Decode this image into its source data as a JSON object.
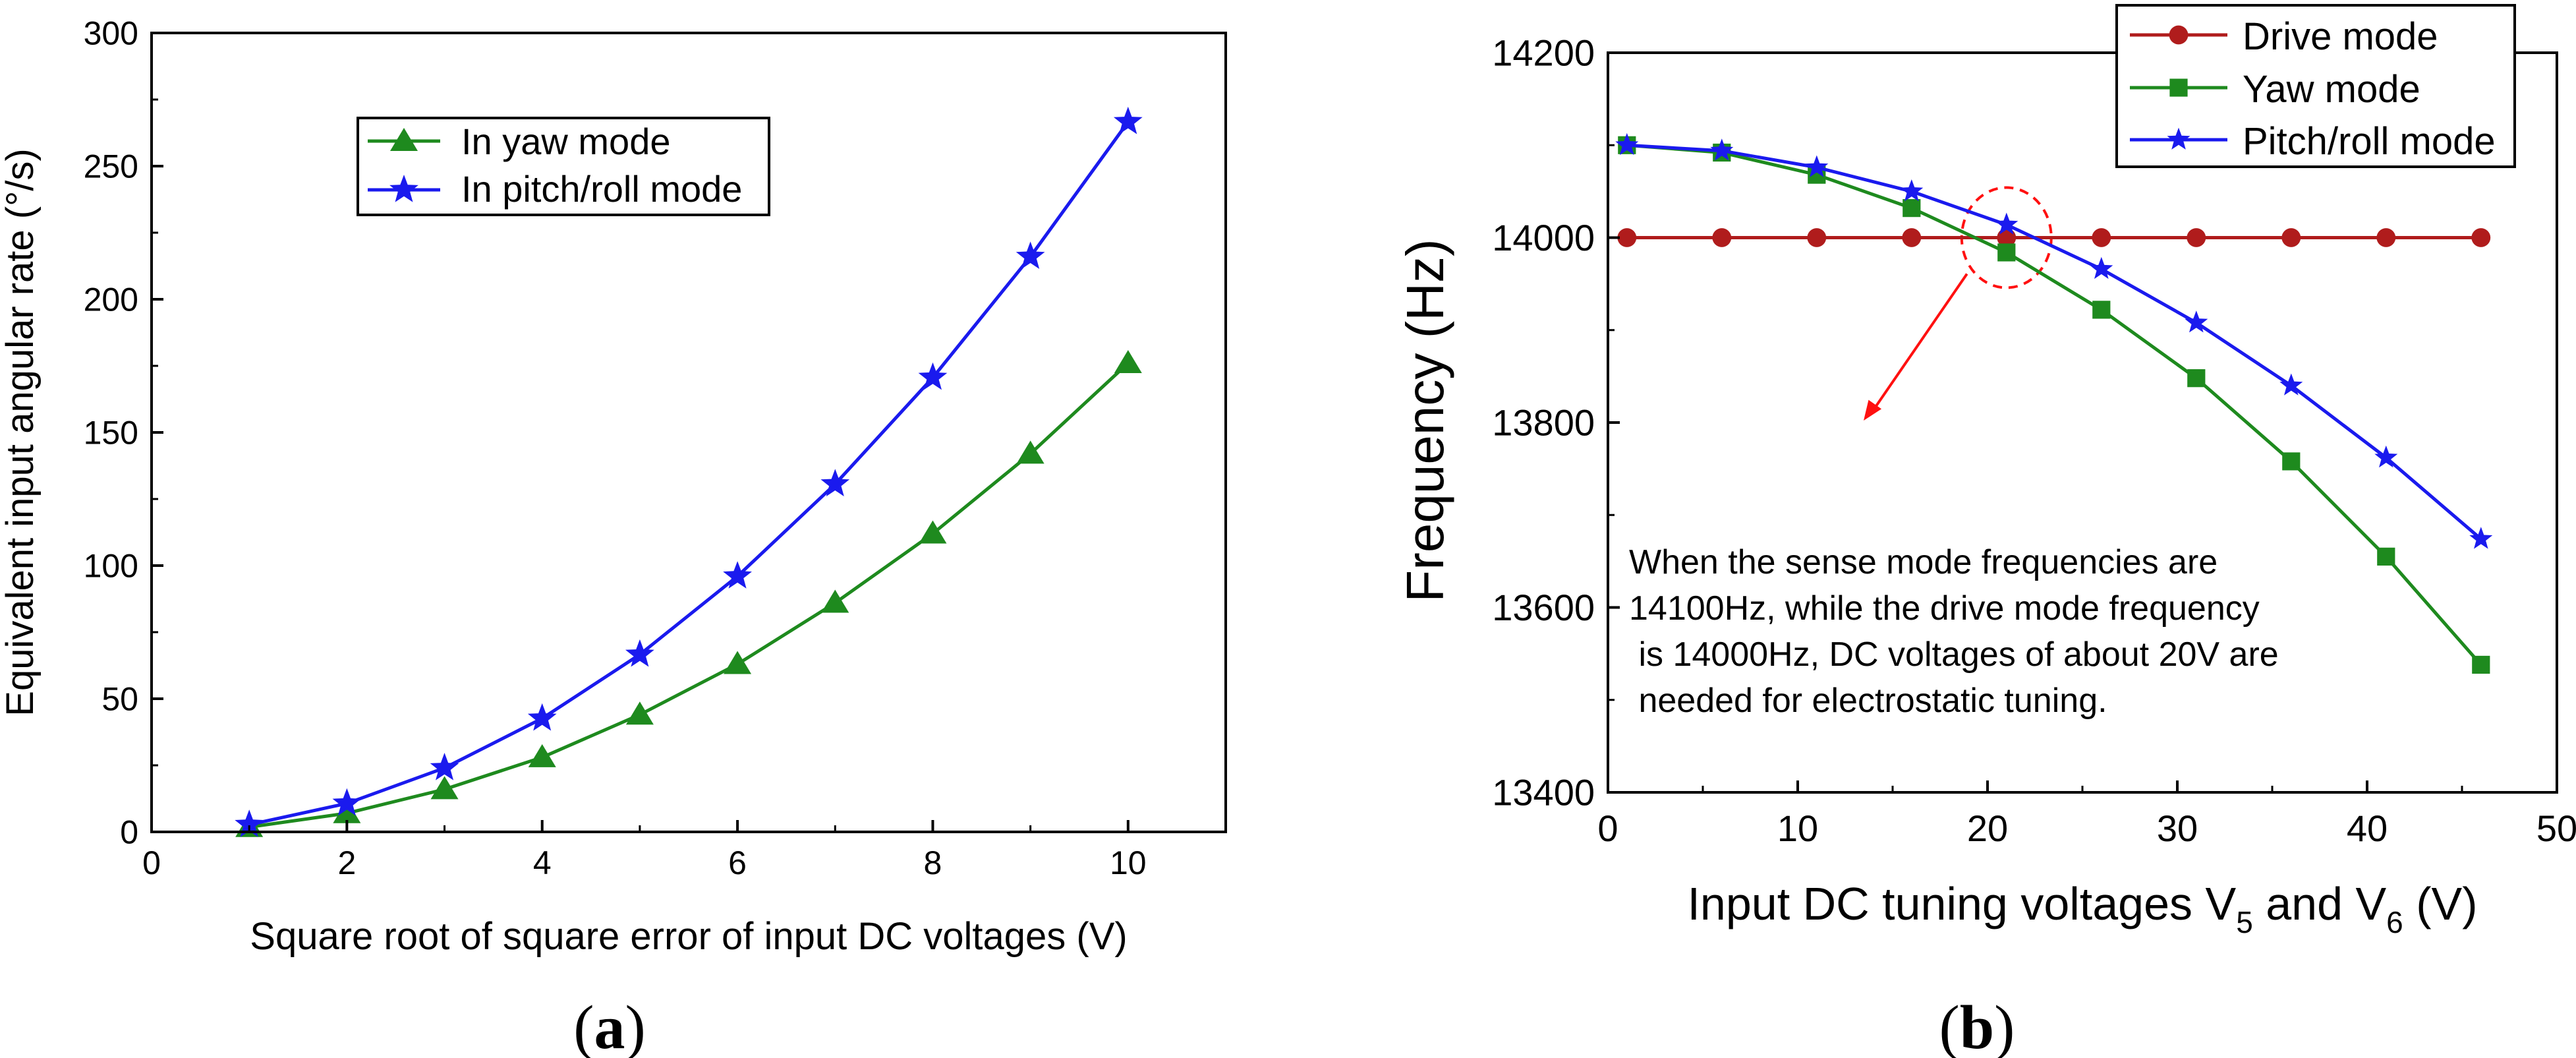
{
  "colors": {
    "green": "#1e8a1e",
    "blue": "#1a1aee",
    "red": "#b01c1c",
    "annot_red": "#ff1010"
  },
  "panel_a": {
    "label_open": "(",
    "label_letter": "a",
    "label_close": ")",
    "chart_data": {
      "type": "line",
      "title": "",
      "xlabel": "Square root of square error of input DC voltages (V)",
      "ylabel": "Equivalent input angular rate (°/s)",
      "xlim": [
        0,
        11
      ],
      "ylim": [
        0,
        300
      ],
      "xticks": [
        0,
        2,
        4,
        6,
        8,
        10
      ],
      "yticks": [
        0,
        50,
        100,
        150,
        200,
        250,
        300
      ],
      "x": [
        1,
        2,
        3,
        4,
        5,
        6,
        7,
        8,
        9,
        10
      ],
      "series": [
        {
          "name": "In yaw mode",
          "marker": "triangle",
          "color": "#1e8a1e",
          "values": [
            1.8,
            7,
            16,
            28,
            44,
            63,
            86,
            112,
            142,
            176
          ]
        },
        {
          "name": "In pitch/roll mode",
          "marker": "star",
          "color": "#1a1aee",
          "values": [
            2.7,
            10.7,
            24,
            42.6,
            66.6,
            96,
            130.6,
            170.6,
            216,
            266.6
          ]
        }
      ],
      "legend": "upper-center",
      "grid": false
    }
  },
  "panel_b": {
    "label_open": "(",
    "label_letter": "b",
    "label_close": ")",
    "chart_data": {
      "type": "line",
      "title": "",
      "xlabel_parts": [
        "Input DC tuning voltages V",
        "5",
        " and V",
        "6",
        " (V)"
      ],
      "ylabel": "Frequency  (Hz)",
      "xlim": [
        0,
        50
      ],
      "ylim": [
        13400,
        14200
      ],
      "xticks": [
        0,
        10,
        20,
        30,
        40,
        50
      ],
      "yticks": [
        13400,
        13600,
        13800,
        14000,
        14200
      ],
      "x": [
        1,
        6,
        11,
        16,
        21,
        26,
        31,
        36,
        41,
        46
      ],
      "series": [
        {
          "name": "Drive mode",
          "marker": "circle",
          "color": "#b01c1c",
          "values": [
            14000,
            14000,
            14000,
            14000,
            14000,
            14000,
            14000,
            14000,
            14000,
            14000
          ]
        },
        {
          "name": "Yaw mode",
          "marker": "square",
          "color": "#1e8a1e",
          "values": [
            14100,
            14092,
            14068,
            14032,
            13984,
            13922,
            13848,
            13758,
            13655,
            13538
          ]
        },
        {
          "name": "Pitch/roll mode",
          "marker": "star",
          "color": "#1a1aee",
          "values": [
            14100,
            14094,
            14076,
            14050,
            14014,
            13966,
            13908,
            13840,
            13762,
            13674
          ]
        }
      ],
      "legend": "upper-right",
      "grid": false,
      "annotation": {
        "lines": [
          "When the sense mode frequencies are",
          "14100Hz, while the drive mode frequency",
          " is 14000Hz, DC voltages of about 20V are",
          " needed for electrostatic tuning."
        ],
        "circle_center": [
          21,
          14000
        ]
      }
    }
  }
}
